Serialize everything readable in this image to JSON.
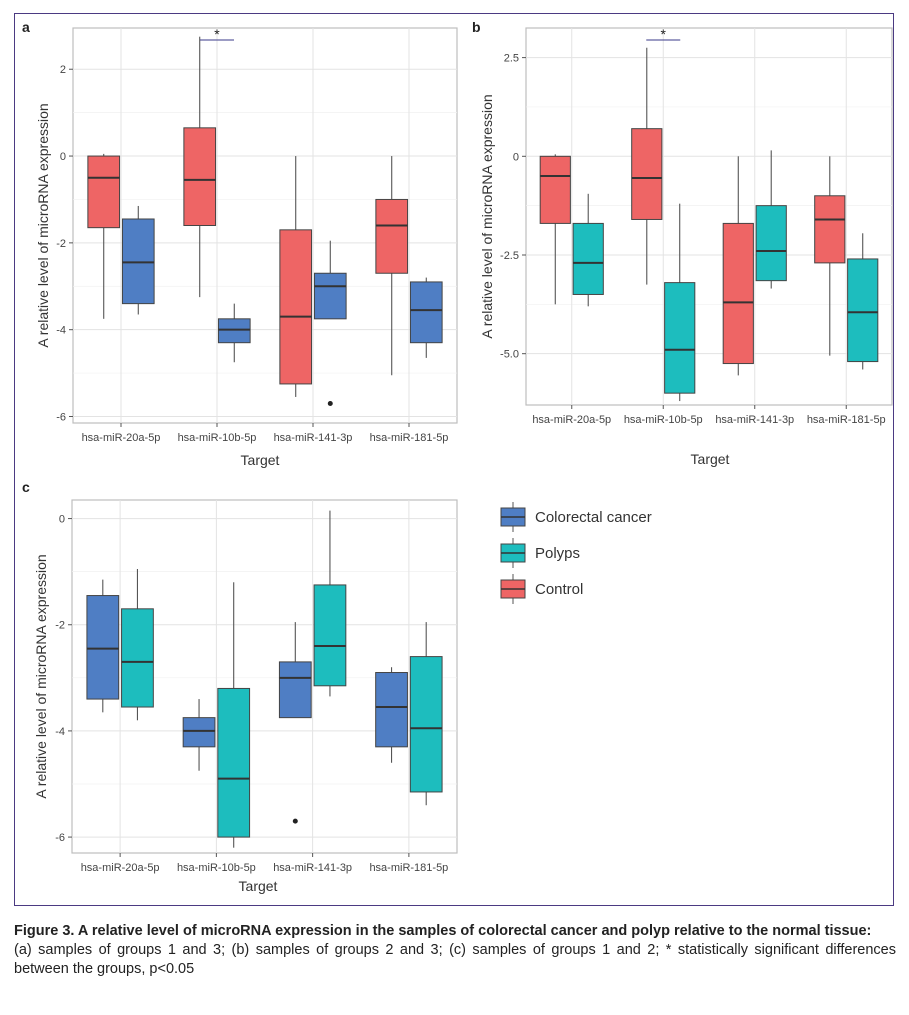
{
  "colors": {
    "control": "#EE6565",
    "colorectal_cancer": "#4F7EC4",
    "polyps": "#1DBDBE",
    "frame": "#4b3a82"
  },
  "legend": [
    {
      "label": "Colorectal cancer",
      "color": "#4F7EC4"
    },
    {
      "label": "Polyps",
      "color": "#1DBDBE"
    },
    {
      "label": "Control",
      "color": "#EE6565"
    }
  ],
  "caption": {
    "title": "Figure 3. A relative level of microRNA expression in the samples of colorectal cancer and polyp relative to the normal tissue:",
    "body": "(a) samples of groups 1 and 3; (b) samples of groups 2 and 3; (c) samples of groups 1 and 2; * statistically significant differences between the groups, p<0.05"
  },
  "chart_data": [
    {
      "panel": "a",
      "type": "box",
      "xlabel": "Target",
      "ylabel": "A relative level of microRNA expression",
      "categories": [
        "hsa-miR-20a-5p",
        "hsa-miR-10b-5p",
        "hsa-miR-141-3p",
        "hsa-miR-181-5p"
      ],
      "ylim": [
        -6.15,
        2.95
      ],
      "yticks": [
        {
          "v": 2,
          "t": "2"
        },
        {
          "v": 0,
          "t": "0"
        },
        {
          "v": -2,
          "t": "-2"
        },
        {
          "v": -4,
          "t": "-4"
        },
        {
          "v": -6,
          "t": "-6"
        }
      ],
      "significance": [
        {
          "category": "hsa-miR-10b-5p",
          "mark": "*"
        }
      ],
      "series": [
        {
          "name": "Control",
          "color": "#EE6565",
          "boxes": [
            {
              "min": -3.75,
              "q1": -1.65,
              "median": -0.5,
              "q3": 0.0,
              "max": 0.05
            },
            {
              "min": -3.25,
              "q1": -1.6,
              "median": -0.55,
              "q3": 0.65,
              "max": 2.75
            },
            {
              "min": -5.55,
              "q1": -5.25,
              "median": -3.7,
              "q3": -1.7,
              "max": 0.0
            },
            {
              "min": -5.05,
              "q1": -2.7,
              "median": -1.6,
              "q3": -1.0,
              "max": 0.0
            }
          ]
        },
        {
          "name": "Colorectal cancer",
          "color": "#4F7EC4",
          "boxes": [
            {
              "min": -3.65,
              "q1": -3.4,
              "median": -2.45,
              "q3": -1.45,
              "max": -1.15
            },
            {
              "min": -4.75,
              "q1": -4.3,
              "median": -4.0,
              "q3": -3.75,
              "max": -3.4
            },
            {
              "min": -3.75,
              "q1": -3.75,
              "median": -3.0,
              "q3": -2.7,
              "max": -1.95,
              "outliers": [
                -5.7
              ]
            },
            {
              "min": -4.65,
              "q1": -4.3,
              "median": -3.55,
              "q3": -2.9,
              "max": -2.8
            }
          ]
        }
      ]
    },
    {
      "panel": "b",
      "type": "box",
      "xlabel": "Target",
      "ylabel": "A relative level of microRNA expression",
      "categories": [
        "hsa-miR-20a-5p",
        "hsa-miR-10b-5p",
        "hsa-miR-141-3p",
        "hsa-miR-181-5p"
      ],
      "ylim": [
        -6.3,
        3.25
      ],
      "yticks": [
        {
          "v": 2.5,
          "t": "2.5"
        },
        {
          "v": 0,
          "t": "0"
        },
        {
          "v": -2.5,
          "t": "-2.5"
        },
        {
          "v": -5,
          "t": "-5.0"
        }
      ],
      "significance": [
        {
          "category": "hsa-miR-10b-5p",
          "mark": "*"
        }
      ],
      "series": [
        {
          "name": "Control",
          "color": "#EE6565",
          "boxes": [
            {
              "min": -3.75,
              "q1": -1.7,
              "median": -0.5,
              "q3": 0.0,
              "max": 0.05
            },
            {
              "min": -3.25,
              "q1": -1.6,
              "median": -0.55,
              "q3": 0.7,
              "max": 2.75
            },
            {
              "min": -5.55,
              "q1": -5.25,
              "median": -3.7,
              "q3": -1.7,
              "max": 0.0
            },
            {
              "min": -5.05,
              "q1": -2.7,
              "median": -1.6,
              "q3": -1.0,
              "max": 0.0
            }
          ]
        },
        {
          "name": "Polyps",
          "color": "#1DBDBE",
          "boxes": [
            {
              "min": -3.8,
              "q1": -3.5,
              "median": -2.7,
              "q3": -1.7,
              "max": -0.95
            },
            {
              "min": -6.2,
              "q1": -6.0,
              "median": -4.9,
              "q3": -3.2,
              "max": -1.2
            },
            {
              "min": -3.35,
              "q1": -3.15,
              "median": -2.4,
              "q3": -1.25,
              "max": 0.15
            },
            {
              "min": -5.4,
              "q1": -5.2,
              "median": -3.95,
              "q3": -2.6,
              "max": -1.95
            }
          ]
        }
      ]
    },
    {
      "panel": "c",
      "type": "box",
      "xlabel": "Target",
      "ylabel": "A relative level of microRNA expression",
      "categories": [
        "hsa-miR-20a-5p",
        "hsa-miR-10b-5p",
        "hsa-miR-141-3p",
        "hsa-miR-181-5p"
      ],
      "ylim": [
        -6.3,
        0.35
      ],
      "yticks": [
        {
          "v": 0,
          "t": "0"
        },
        {
          "v": -2,
          "t": "-2"
        },
        {
          "v": -4,
          "t": "-4"
        },
        {
          "v": -6,
          "t": "-6"
        }
      ],
      "significance": [],
      "series": [
        {
          "name": "Colorectal cancer",
          "color": "#4F7EC4",
          "boxes": [
            {
              "min": -3.65,
              "q1": -3.4,
              "median": -2.45,
              "q3": -1.45,
              "max": -1.15
            },
            {
              "min": -4.75,
              "q1": -4.3,
              "median": -4.0,
              "q3": -3.75,
              "max": -3.4
            },
            {
              "min": -3.75,
              "q1": -3.75,
              "median": -3.0,
              "q3": -2.7,
              "max": -1.95,
              "outliers": [
                -5.7
              ]
            },
            {
              "min": -4.6,
              "q1": -4.3,
              "median": -3.55,
              "q3": -2.9,
              "max": -2.8
            }
          ]
        },
        {
          "name": "Polyps",
          "color": "#1DBDBE",
          "boxes": [
            {
              "min": -3.8,
              "q1": -3.55,
              "median": -2.7,
              "q3": -1.7,
              "max": -0.95
            },
            {
              "min": -6.2,
              "q1": -6.0,
              "median": -4.9,
              "q3": -3.2,
              "max": -1.2
            },
            {
              "min": -3.35,
              "q1": -3.15,
              "median": -2.4,
              "q3": -1.25,
              "max": 0.15
            },
            {
              "min": -5.4,
              "q1": -5.15,
              "median": -3.95,
              "q3": -2.6,
              "max": -1.95
            }
          ]
        }
      ]
    }
  ]
}
